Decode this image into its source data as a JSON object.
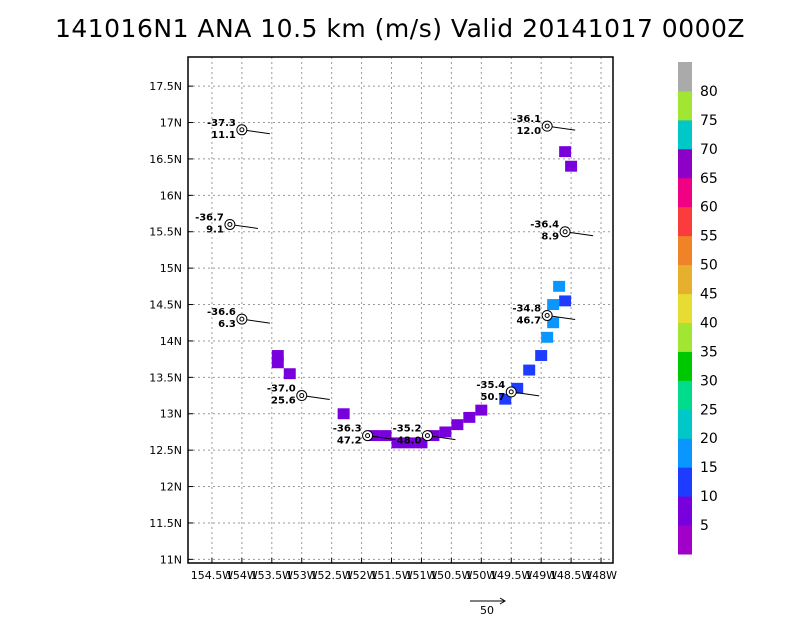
{
  "title": "141016N1 ANA 10.5 km (m/s) Valid 20141017 0000Z",
  "chart_data": {
    "type": "heatmap",
    "title": "141016N1 ANA 10.5 km (m/s) Valid 20141017 0000Z",
    "xlim": [
      -154.9,
      -147.8
    ],
    "ylim": [
      10.95,
      17.9
    ],
    "x_ticks": [
      {
        "v": -154.5,
        "label": "154.5W"
      },
      {
        "v": -154,
        "label": "154W"
      },
      {
        "v": -153.5,
        "label": "153.5W"
      },
      {
        "v": -153,
        "label": "153W"
      },
      {
        "v": -152.5,
        "label": "152.5W"
      },
      {
        "v": -152,
        "label": "152W"
      },
      {
        "v": -151.5,
        "label": "151.5W"
      },
      {
        "v": -151,
        "label": "151W"
      },
      {
        "v": -150.5,
        "label": "150.5W"
      },
      {
        "v": -150,
        "label": "150W"
      },
      {
        "v": -149.5,
        "label": "149.5W"
      },
      {
        "v": -149,
        "label": "149W"
      },
      {
        "v": -148.5,
        "label": "148.5W"
      },
      {
        "v": -148,
        "label": "148W"
      }
    ],
    "y_ticks": [
      {
        "v": 11,
        "label": "11N"
      },
      {
        "v": 11.5,
        "label": "11.5N"
      },
      {
        "v": 12,
        "label": "12N"
      },
      {
        "v": 12.5,
        "label": "12.5N"
      },
      {
        "v": 13,
        "label": "13N"
      },
      {
        "v": 13.5,
        "label": "13.5N"
      },
      {
        "v": 14,
        "label": "14N"
      },
      {
        "v": 14.5,
        "label": "14.5N"
      },
      {
        "v": 15,
        "label": "15N"
      },
      {
        "v": 15.5,
        "label": "15.5N"
      },
      {
        "v": 16,
        "label": "16N"
      },
      {
        "v": 16.5,
        "label": "16.5N"
      },
      {
        "v": 17,
        "label": "17N"
      },
      {
        "v": 17.5,
        "label": "17.5N"
      }
    ],
    "grid": true,
    "colorbar": {
      "colors": [
        "#a000c8",
        "#7800dc",
        "#1e3cff",
        "#0a96ff",
        "#00c8c8",
        "#00dc8c",
        "#00c800",
        "#a0e632",
        "#e6dc32",
        "#e6af2d",
        "#f08228",
        "#fa3c3c",
        "#f00082",
        "#8c00c8",
        "#00c8c8",
        "#a0e632",
        "#aaaaaa"
      ],
      "labels": [
        "5",
        "10",
        "15",
        "20",
        "25",
        "30",
        "35",
        "40",
        "45",
        "50",
        "55",
        "60",
        "65",
        "70",
        "75",
        "80"
      ]
    },
    "wind_cells": [
      {
        "lon": -153.4,
        "lat": 13.8,
        "color": "#7800dc"
      },
      {
        "lon": -153.4,
        "lat": 13.7,
        "color": "#7800dc"
      },
      {
        "lon": -153.2,
        "lat": 13.55,
        "color": "#7800dc"
      },
      {
        "lon": -152.3,
        "lat": 13.0,
        "color": "#7800dc"
      },
      {
        "lon": -151.8,
        "lat": 12.7,
        "color": "#7800dc"
      },
      {
        "lon": -151.6,
        "lat": 12.7,
        "color": "#7800dc"
      },
      {
        "lon": -151.4,
        "lat": 12.6,
        "color": "#7800dc"
      },
      {
        "lon": -151.2,
        "lat": 12.6,
        "color": "#7800dc"
      },
      {
        "lon": -151.0,
        "lat": 12.6,
        "color": "#7800dc"
      },
      {
        "lon": -150.8,
        "lat": 12.7,
        "color": "#7800dc"
      },
      {
        "lon": -150.6,
        "lat": 12.75,
        "color": "#7800dc"
      },
      {
        "lon": -150.4,
        "lat": 12.85,
        "color": "#7800dc"
      },
      {
        "lon": -150.2,
        "lat": 12.95,
        "color": "#7800dc"
      },
      {
        "lon": -150.0,
        "lat": 13.05,
        "color": "#7800dc"
      },
      {
        "lon": -149.6,
        "lat": 13.2,
        "color": "#1e3cff"
      },
      {
        "lon": -149.4,
        "lat": 13.35,
        "color": "#1e3cff"
      },
      {
        "lon": -149.2,
        "lat": 13.6,
        "color": "#1e3cff"
      },
      {
        "lon": -149.0,
        "lat": 13.8,
        "color": "#1e3cff"
      },
      {
        "lon": -148.9,
        "lat": 14.05,
        "color": "#0a96ff"
      },
      {
        "lon": -148.8,
        "lat": 14.25,
        "color": "#0a96ff"
      },
      {
        "lon": -148.8,
        "lat": 14.5,
        "color": "#0a96ff"
      },
      {
        "lon": -148.6,
        "lat": 14.55,
        "color": "#1e3cff"
      },
      {
        "lon": -148.7,
        "lat": 14.75,
        "color": "#0a96ff"
      },
      {
        "lon": -148.6,
        "lat": 16.6,
        "color": "#7800dc"
      },
      {
        "lon": -148.5,
        "lat": 16.4,
        "color": "#7800dc"
      }
    ],
    "stations": [
      {
        "lon": -154.0,
        "lat": 16.9,
        "temp": "-37.3",
        "speed": "11.1"
      },
      {
        "lon": -154.2,
        "lat": 15.6,
        "temp": "-36.7",
        "speed": "9.1"
      },
      {
        "lon": -154.0,
        "lat": 14.3,
        "temp": "-36.6",
        "speed": "6.3"
      },
      {
        "lon": -153.0,
        "lat": 13.25,
        "temp": "-37.0",
        "speed": "25.6"
      },
      {
        "lon": -151.9,
        "lat": 12.7,
        "temp": "-36.3",
        "speed": "47.2"
      },
      {
        "lon": -150.9,
        "lat": 12.7,
        "temp": "-35.2",
        "speed": "48.0"
      },
      {
        "lon": -149.5,
        "lat": 13.3,
        "temp": "-35.4",
        "speed": "50.7"
      },
      {
        "lon": -148.9,
        "lat": 14.35,
        "temp": "-34.8",
        "speed": "46.7"
      },
      {
        "lon": -148.9,
        "lat": 16.95,
        "temp": "-36.1",
        "speed": "12.0"
      },
      {
        "lon": -148.6,
        "lat": 15.5,
        "temp": "-36.4",
        "speed": "8.9"
      }
    ],
    "reference_vector": {
      "label": "50"
    }
  }
}
